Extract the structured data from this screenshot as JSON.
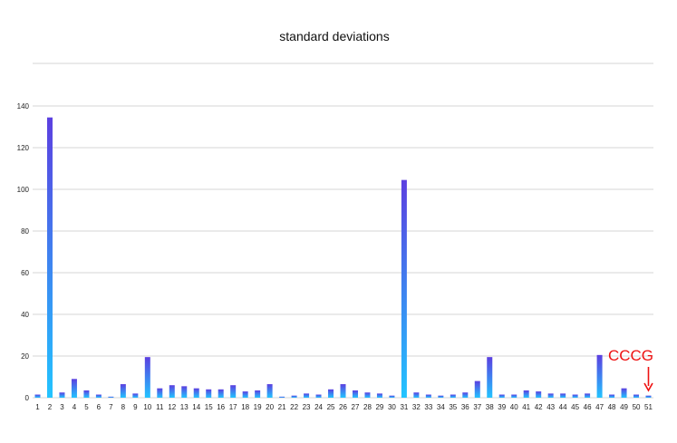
{
  "chart_data": {
    "type": "bar",
    "title": "standard deviations",
    "xlabel": "",
    "ylabel": "",
    "ylim": [
      0,
      160
    ],
    "yticks": [
      0,
      20,
      40,
      60,
      80,
      100,
      120,
      140
    ],
    "grid": true,
    "categories": [
      "1",
      "2",
      "3",
      "4",
      "5",
      "6",
      "7",
      "8",
      "9",
      "10",
      "11",
      "12",
      "13",
      "14",
      "15",
      "16",
      "17",
      "18",
      "19",
      "20",
      "21",
      "22",
      "23",
      "24",
      "25",
      "26",
      "27",
      "28",
      "29",
      "30",
      "31",
      "32",
      "33",
      "34",
      "35",
      "36",
      "37",
      "38",
      "39",
      "40",
      "41",
      "42",
      "43",
      "44",
      "45",
      "46",
      "47",
      "48",
      "49",
      "50",
      "51"
    ],
    "values": [
      1.5,
      134.5,
      2.5,
      9,
      3.5,
      1.5,
      0.5,
      6.5,
      2,
      19.5,
      4.5,
      6,
      5.5,
      4.5,
      4,
      4,
      6,
      3,
      3.5,
      6.5,
      0.5,
      1,
      2,
      1.5,
      4,
      6.5,
      3.5,
      2.5,
      2,
      1,
      104.5,
      2.5,
      1.5,
      1,
      1.5,
      2.5,
      8,
      19.5,
      1.5,
      1.5,
      3.5,
      3,
      2,
      2,
      1.5,
      2,
      20.5,
      1.5,
      4.5,
      1.5,
      1
    ],
    "colors": {
      "bar_top": "#5b3fe0",
      "bar_bottom": "#22c4ff",
      "grid": "#d6d6d6",
      "annotation": "#ee1111"
    },
    "annotations": [
      {
        "text": "CCCG",
        "category": "51",
        "arrow": "down"
      }
    ]
  }
}
